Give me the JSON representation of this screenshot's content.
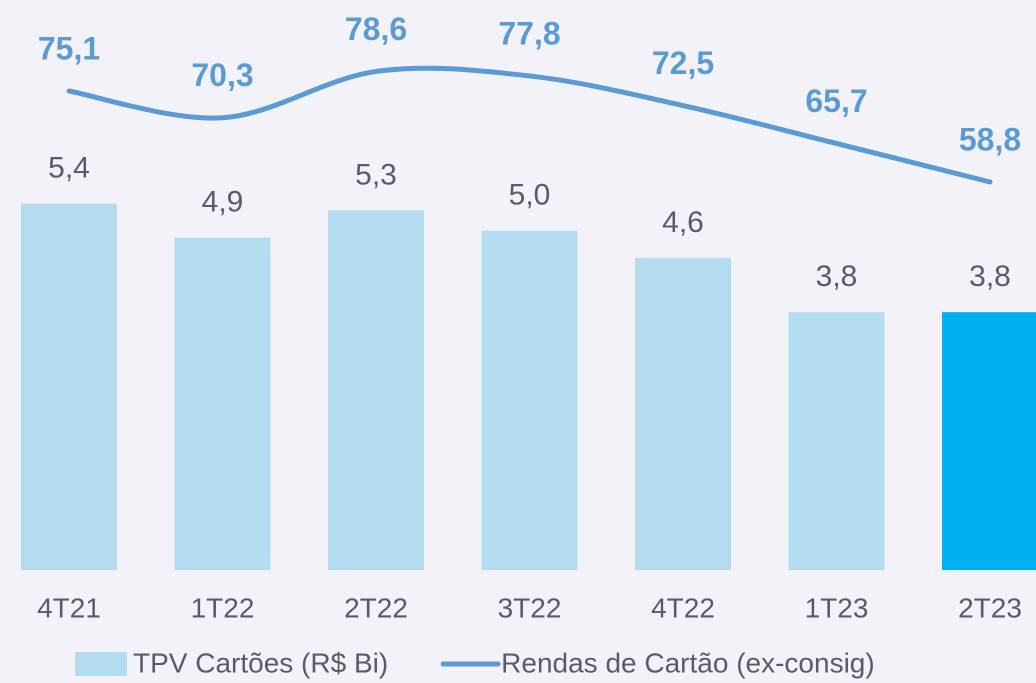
{
  "chart_data": {
    "type": "bar-line",
    "categories": [
      "4T21",
      "1T22",
      "2T22",
      "3T22",
      "4T22",
      "1T23",
      "2T23"
    ],
    "series": [
      {
        "name": "TPV Cartões (R$ Bi)",
        "type": "bar",
        "color": "#b3dcf0",
        "colors": [
          "#b3dcf0",
          "#b3dcf0",
          "#b3dcf0",
          "#b3dcf0",
          "#b3dcf0",
          "#b3dcf0",
          "#00b0f0"
        ],
        "values": [
          5.4,
          4.9,
          5.3,
          5.0,
          4.6,
          3.8,
          3.8
        ],
        "value_labels": [
          "5,4",
          "4,9",
          "5,3",
          "5,0",
          "4,6",
          "3,8",
          "3,8"
        ]
      },
      {
        "name": "Rendas de Cartão (ex-consig)",
        "type": "line",
        "axis": "y2",
        "color": "#5b9bd5",
        "values": [
          75.1,
          70.3,
          78.6,
          77.8,
          72.5,
          65.7,
          58.8
        ],
        "value_labels": [
          "75,1",
          "70,3",
          "78,6",
          "77,8",
          "72,5",
          "65,7",
          "58,8"
        ]
      }
    ],
    "ylim": [
      0,
      8.4
    ],
    "y2lim": [
      -10.7,
      91.4
    ],
    "legend": "bottom"
  }
}
